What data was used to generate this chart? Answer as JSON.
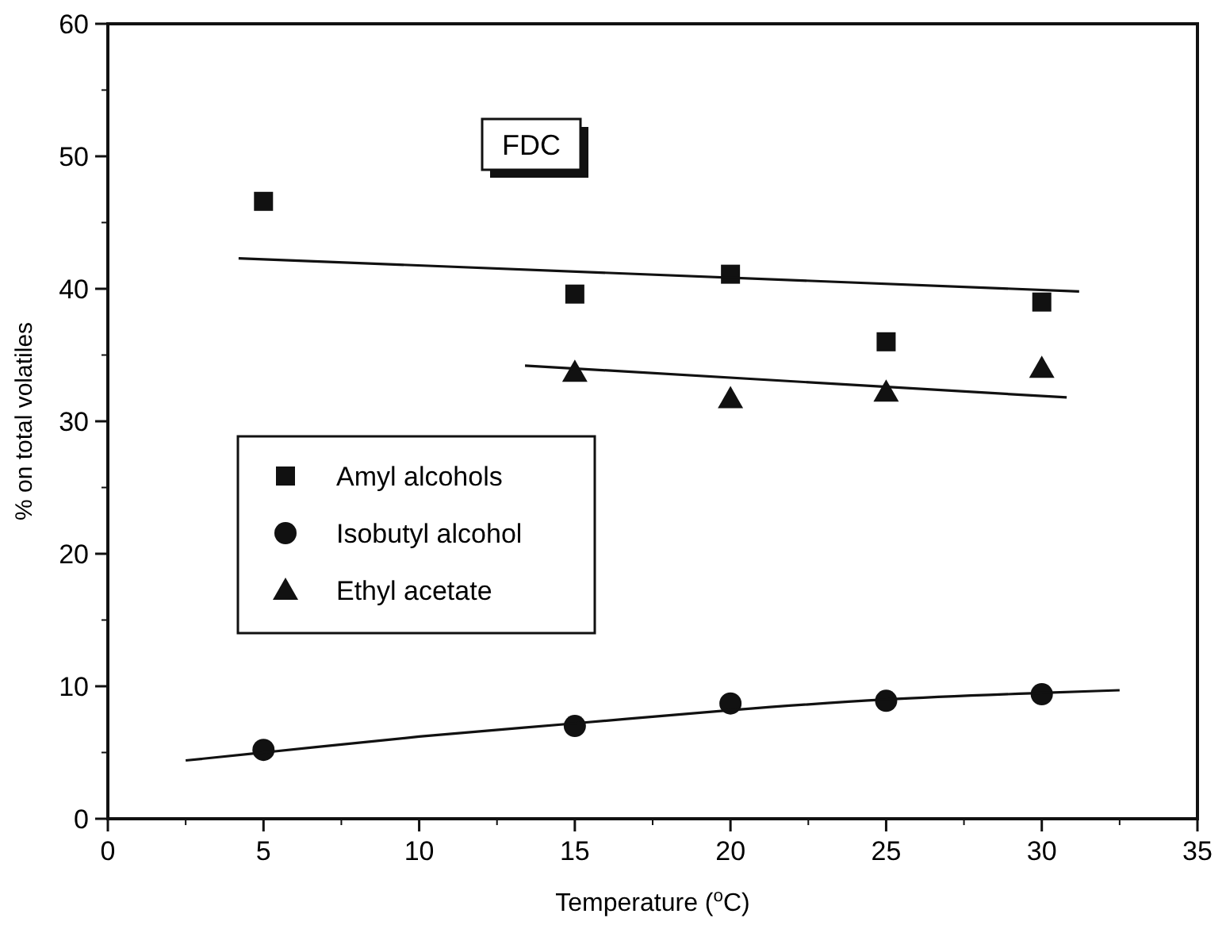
{
  "chart_data": {
    "type": "scatter",
    "xlabel": "Temperature ($^{o}$C)",
    "ylabel": "% on total volatiles",
    "annotations": [
      "FDC"
    ],
    "x": [
      5,
      15,
      20,
      25,
      30
    ],
    "xlim": [
      0,
      35
    ],
    "xticks": [
      0,
      5,
      10,
      15,
      20,
      25,
      30,
      35
    ],
    "ylim": [
      0,
      60
    ],
    "yticks": [
      0,
      10,
      20,
      30,
      40,
      50,
      60
    ],
    "grid": false,
    "legend": "left",
    "series": [
      {
        "name": "Amyl alcohols",
        "color": "#111111",
        "marker": "square",
        "values": [
          46.6,
          39.6,
          41.1,
          36.0,
          39.0
        ]
      },
      {
        "name": "Isobutyl alcohol",
        "color": "#111111",
        "marker": "circle",
        "values": [
          5.2,
          7.0,
          8.7,
          8.9,
          9.4
        ]
      },
      {
        "name": "Ethyl acetate",
        "color": "#111111",
        "marker": "triangle",
        "x": [
          15,
          20,
          25,
          30
        ],
        "values": [
          33.7,
          31.7,
          32.2,
          34.0
        ]
      },
      {
        "type": "line",
        "color": "#111111",
        "marker": "none",
        "x": [
          4.2,
          31.2
        ],
        "values": [
          42.3,
          39.8
        ]
      },
      {
        "type": "line",
        "color": "#111111",
        "marker": "none",
        "x": [
          13.4,
          30.8
        ],
        "values": [
          34.2,
          31.8
        ]
      },
      {
        "type": "line",
        "color": "#111111",
        "marker": "none",
        "x": [
          2.5,
          5,
          10,
          15,
          20,
          25,
          30,
          32.5
        ],
        "values": [
          4.4,
          5.0,
          6.2,
          7.2,
          8.2,
          9.0,
          9.5,
          9.7
        ]
      }
    ]
  }
}
